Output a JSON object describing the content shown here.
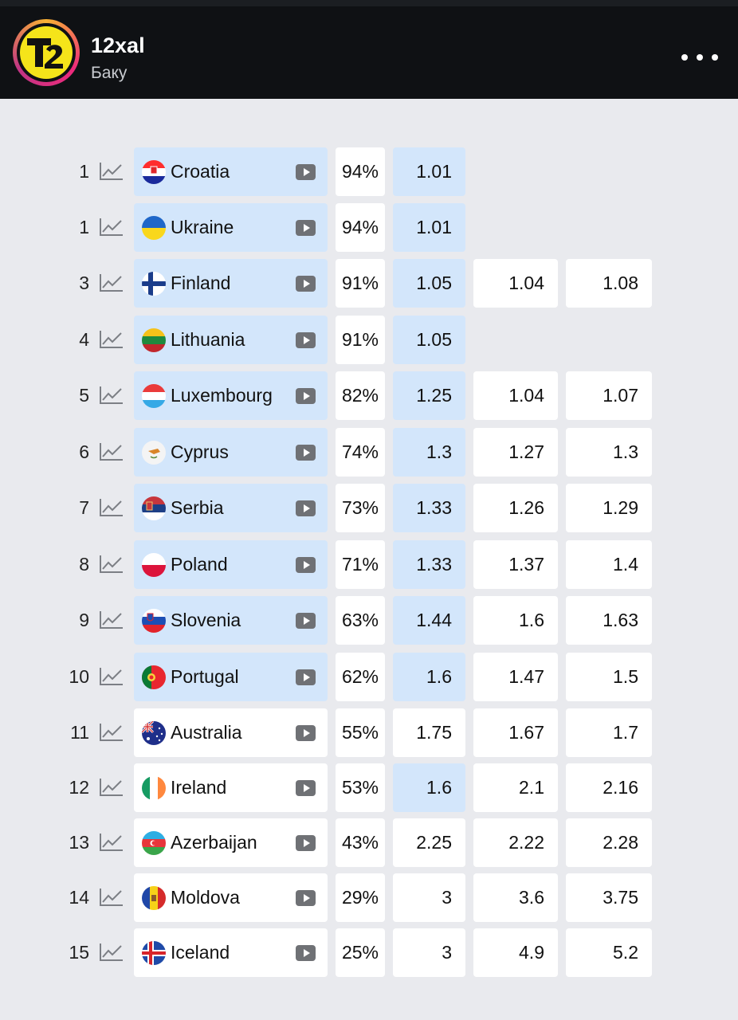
{
  "header": {
    "account_name": "12xal",
    "account_subtitle": "Баку",
    "avatar_logo": "t2-logo",
    "more_icon": "more-horizontal-icon"
  },
  "colors": {
    "header_bg": "#0f1114",
    "page_bg": "#e9eaee",
    "highlight": "#d3e6fb",
    "cell_bg": "#ffffff"
  },
  "rows": [
    {
      "rank": "1",
      "country": "Croatia",
      "flag": "croatia-flag-icon",
      "pct": "94%",
      "odds1": "1.01",
      "odds2": "",
      "odds3": "",
      "highlight": true
    },
    {
      "rank": "1",
      "country": "Ukraine",
      "flag": "ukraine-flag-icon",
      "pct": "94%",
      "odds1": "1.01",
      "odds2": "",
      "odds3": "",
      "highlight": true
    },
    {
      "rank": "3",
      "country": "Finland",
      "flag": "finland-flag-icon",
      "pct": "91%",
      "odds1": "1.05",
      "odds2": "1.04",
      "odds3": "1.08",
      "highlight": true
    },
    {
      "rank": "4",
      "country": "Lithuania",
      "flag": "lithuania-flag-icon",
      "pct": "91%",
      "odds1": "1.05",
      "odds2": "",
      "odds3": "",
      "highlight": true
    },
    {
      "rank": "5",
      "country": "Luxembourg",
      "flag": "luxembourg-flag-icon",
      "pct": "82%",
      "odds1": "1.25",
      "odds2": "1.04",
      "odds3": "1.07",
      "highlight": true
    },
    {
      "rank": "6",
      "country": "Cyprus",
      "flag": "cyprus-flag-icon",
      "pct": "74%",
      "odds1": "1.3",
      "odds2": "1.27",
      "odds3": "1.3",
      "highlight": true
    },
    {
      "rank": "7",
      "country": "Serbia",
      "flag": "serbia-flag-icon",
      "pct": "73%",
      "odds1": "1.33",
      "odds2": "1.26",
      "odds3": "1.29",
      "highlight": true
    },
    {
      "rank": "8",
      "country": "Poland",
      "flag": "poland-flag-icon",
      "pct": "71%",
      "odds1": "1.33",
      "odds2": "1.37",
      "odds3": "1.4",
      "highlight": true
    },
    {
      "rank": "9",
      "country": "Slovenia",
      "flag": "slovenia-flag-icon",
      "pct": "63%",
      "odds1": "1.44",
      "odds2": "1.6",
      "odds3": "1.63",
      "highlight": true
    },
    {
      "rank": "10",
      "country": "Portugal",
      "flag": "portugal-flag-icon",
      "pct": "62%",
      "odds1": "1.6",
      "odds2": "1.47",
      "odds3": "1.5",
      "highlight": true
    },
    {
      "rank": "11",
      "country": "Australia",
      "flag": "australia-flag-icon",
      "pct": "55%",
      "odds1": "1.75",
      "odds2": "1.67",
      "odds3": "1.7",
      "highlight": false
    },
    {
      "rank": "12",
      "country": "Ireland",
      "flag": "ireland-flag-icon",
      "pct": "53%",
      "odds1": "1.6",
      "odds2": "2.1",
      "odds3": "2.16",
      "highlight": false,
      "odds1_highlight": true
    },
    {
      "rank": "13",
      "country": "Azerbaijan",
      "flag": "azerbaijan-flag-icon",
      "pct": "43%",
      "odds1": "2.25",
      "odds2": "2.22",
      "odds3": "2.28",
      "highlight": false
    },
    {
      "rank": "14",
      "country": "Moldova",
      "flag": "moldova-flag-icon",
      "pct": "29%",
      "odds1": "3",
      "odds2": "3.6",
      "odds3": "3.75",
      "highlight": false
    },
    {
      "rank": "15",
      "country": "Iceland",
      "flag": "iceland-flag-icon",
      "pct": "25%",
      "odds1": "3",
      "odds2": "4.9",
      "odds3": "5.2",
      "highlight": false
    }
  ]
}
